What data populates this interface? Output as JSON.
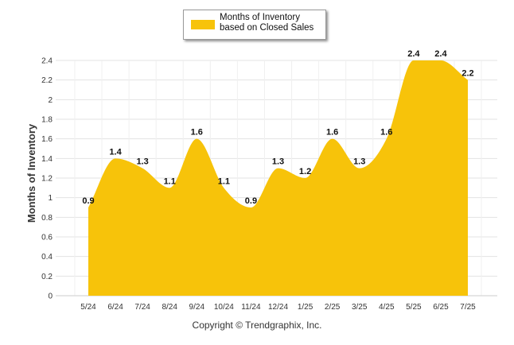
{
  "chart_data": {
    "type": "area",
    "categories": [
      "5/24",
      "6/24",
      "7/24",
      "8/24",
      "9/24",
      "10/24",
      "11/24",
      "12/24",
      "1/25",
      "2/25",
      "3/25",
      "4/25",
      "5/25",
      "6/25",
      "7/25"
    ],
    "series": [
      {
        "name": "Months of Inventory based on Closed Sales",
        "values": [
          0.9,
          1.4,
          1.3,
          1.1,
          1.6,
          1.1,
          0.9,
          1.3,
          1.2,
          1.6,
          1.3,
          1.6,
          2.4,
          2.4,
          2.2
        ],
        "color": "#f7c30a"
      }
    ],
    "data_labels": [
      "0.9",
      "1.4",
      "1.3",
      "1.1",
      "1.6",
      "1.1",
      "0.9",
      "1.3",
      "1.2",
      "1.6",
      "1.3",
      "1.6",
      "2.4",
      "2.4",
      "2.2"
    ],
    "y_ticks": [
      "0",
      "0.2",
      "0.4",
      "0.6",
      "0.8",
      "1",
      "1.2",
      "1.4",
      "1.6",
      "1.8",
      "2",
      "2.2",
      "2.4"
    ],
    "ylim": [
      0,
      2.4
    ],
    "ylabel": "Months of Inventory",
    "xlabel": "",
    "grid": true,
    "legend_position": "top-center"
  },
  "legend": {
    "label": "Months of Inventory based on Closed Sales"
  },
  "footer": {
    "copyright": "Copyright © Trendgraphix, Inc."
  }
}
